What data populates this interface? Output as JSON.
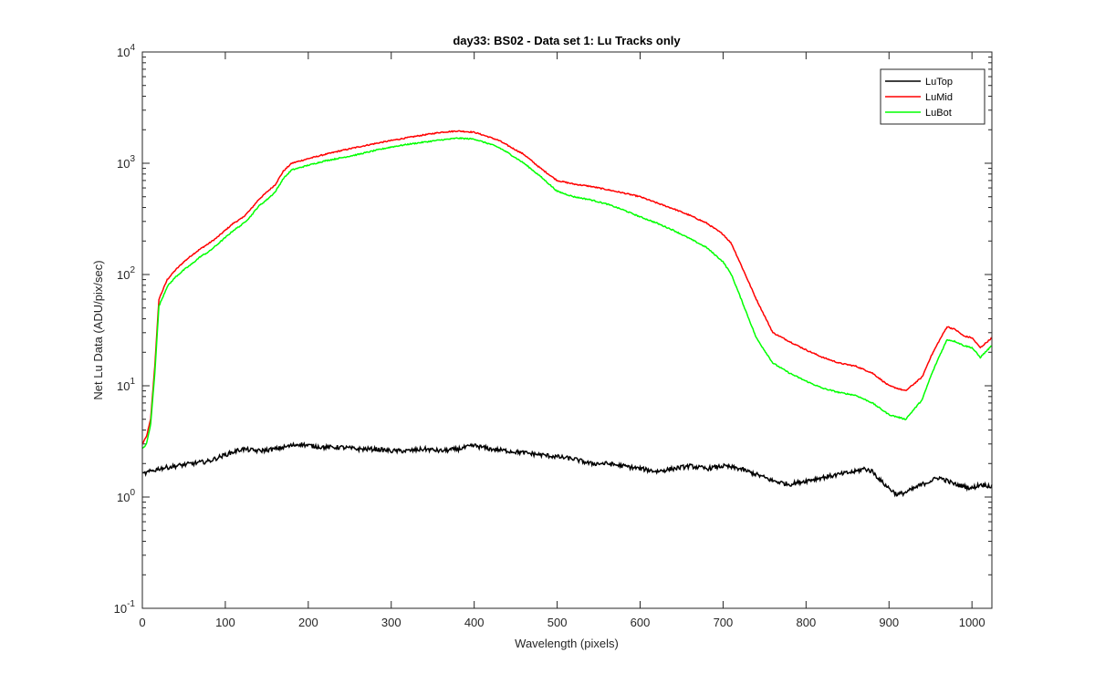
{
  "chart_data": {
    "type": "line",
    "title": "day33: BS02 - Data set 1: Lu Tracks only",
    "xlabel": "Wavelength (pixels)",
    "ylabel": "Net Lu Data (ADU/pix/sec)",
    "xlim": [
      0,
      1024
    ],
    "ylim": [
      0.1,
      10000
    ],
    "yscale": "log",
    "xticks": [
      0,
      100,
      200,
      300,
      400,
      500,
      600,
      700,
      800,
      900,
      1000
    ],
    "yticks": [
      {
        "base": "10",
        "exp": "-1",
        "value": 0.1
      },
      {
        "base": "10",
        "exp": "0",
        "value": 1
      },
      {
        "base": "10",
        "exp": "1",
        "value": 10
      },
      {
        "base": "10",
        "exp": "2",
        "value": 100
      },
      {
        "base": "10",
        "exp": "3",
        "value": 1000
      },
      {
        "base": "10",
        "exp": "4",
        "value": 10000
      }
    ],
    "grid": false,
    "legend_position": "top-right",
    "series": [
      {
        "name": "LuTop",
        "color": "#000000",
        "x": [
          0,
          10,
          20,
          40,
          60,
          80,
          100,
          120,
          140,
          160,
          180,
          190,
          200,
          220,
          240,
          260,
          280,
          300,
          320,
          340,
          360,
          380,
          400,
          420,
          440,
          460,
          480,
          500,
          520,
          540,
          560,
          580,
          600,
          620,
          640,
          660,
          680,
          700,
          720,
          740,
          760,
          780,
          800,
          820,
          840,
          860,
          870,
          880,
          890,
          900,
          910,
          920,
          940,
          960,
          970,
          980,
          1000,
          1010,
          1024
        ],
        "y": [
          1.6,
          1.7,
          1.8,
          1.9,
          2.0,
          2.1,
          2.4,
          2.7,
          2.6,
          2.7,
          2.9,
          3.0,
          2.9,
          2.8,
          2.8,
          2.7,
          2.7,
          2.6,
          2.6,
          2.7,
          2.6,
          2.7,
          2.9,
          2.7,
          2.6,
          2.5,
          2.4,
          2.3,
          2.2,
          2.0,
          2.0,
          1.9,
          1.8,
          1.7,
          1.8,
          1.9,
          1.8,
          1.9,
          1.8,
          1.6,
          1.4,
          1.3,
          1.4,
          1.5,
          1.6,
          1.7,
          1.8,
          1.7,
          1.4,
          1.2,
          1.05,
          1.1,
          1.3,
          1.5,
          1.4,
          1.3,
          1.2,
          1.3,
          1.25
        ]
      },
      {
        "name": "LuMid",
        "color": "#ff0000",
        "x": [
          0,
          5,
          10,
          15,
          20,
          30,
          40,
          50,
          60,
          70,
          80,
          90,
          100,
          110,
          120,
          130,
          140,
          150,
          160,
          170,
          180,
          200,
          220,
          240,
          260,
          280,
          300,
          320,
          340,
          360,
          380,
          400,
          410,
          420,
          430,
          440,
          460,
          480,
          500,
          520,
          540,
          560,
          580,
          600,
          620,
          640,
          660,
          680,
          700,
          710,
          720,
          740,
          760,
          780,
          800,
          820,
          840,
          860,
          880,
          900,
          920,
          940,
          950,
          960,
          970,
          980,
          990,
          1000,
          1010,
          1024
        ],
        "y": [
          3.0,
          3.5,
          5,
          15,
          60,
          90,
          110,
          130,
          150,
          170,
          190,
          215,
          250,
          290,
          320,
          380,
          470,
          550,
          640,
          850,
          1000,
          1100,
          1200,
          1300,
          1400,
          1500,
          1600,
          1700,
          1800,
          1900,
          1950,
          1900,
          1800,
          1700,
          1600,
          1450,
          1200,
          900,
          700,
          650,
          620,
          580,
          540,
          500,
          440,
          390,
          340,
          290,
          230,
          190,
          130,
          60,
          30,
          25,
          21,
          18,
          16,
          15,
          13,
          10,
          9,
          12,
          18,
          25,
          34,
          32,
          28,
          27,
          22,
          27
        ]
      },
      {
        "name": "LuBot",
        "color": "#00ff00",
        "x": [
          0,
          5,
          10,
          15,
          20,
          30,
          40,
          50,
          60,
          70,
          80,
          90,
          100,
          110,
          120,
          130,
          140,
          150,
          160,
          170,
          180,
          200,
          220,
          240,
          260,
          280,
          300,
          320,
          340,
          360,
          380,
          400,
          410,
          420,
          430,
          440,
          460,
          480,
          500,
          520,
          540,
          560,
          580,
          600,
          620,
          640,
          660,
          680,
          700,
          710,
          720,
          740,
          760,
          780,
          800,
          820,
          840,
          860,
          880,
          900,
          920,
          940,
          950,
          960,
          970,
          980,
          990,
          1000,
          1010,
          1024
        ],
        "y": [
          2.7,
          3.0,
          4.5,
          13,
          52,
          78,
          95,
          110,
          125,
          145,
          160,
          185,
          215,
          250,
          280,
          330,
          410,
          470,
          550,
          730,
          870,
          960,
          1050,
          1120,
          1200,
          1300,
          1400,
          1480,
          1550,
          1620,
          1680,
          1650,
          1560,
          1480,
          1380,
          1250,
          1000,
          760,
          560,
          500,
          470,
          430,
          380,
          330,
          290,
          250,
          210,
          175,
          130,
          100,
          65,
          27,
          16,
          13,
          11,
          9.5,
          8.7,
          8.2,
          7,
          5.5,
          5,
          7.5,
          12,
          18,
          26,
          25,
          23,
          22,
          18,
          23
        ]
      }
    ]
  }
}
